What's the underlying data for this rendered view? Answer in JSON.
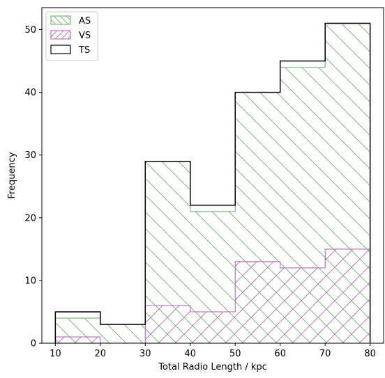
{
  "chart_data": {
    "type": "histogram",
    "xlabel": "Total Radio Length / kpc",
    "ylabel": "Frequency",
    "xlim": [
      7,
      83
    ],
    "ylim": [
      0,
      53.5
    ],
    "x_ticks": [
      10,
      20,
      30,
      40,
      50,
      60,
      70,
      80
    ],
    "y_ticks": [
      0,
      10,
      20,
      30,
      40,
      50
    ],
    "bin_edges": [
      10,
      20,
      30,
      40,
      50,
      60,
      70,
      80
    ],
    "legend_position": "top-left",
    "series": [
      {
        "name": "AS",
        "color": "#77bb77",
        "hatch": "backslash",
        "values": [
          4,
          3,
          29,
          21,
          40,
          44,
          51
        ]
      },
      {
        "name": "VS",
        "color": "#c173c1",
        "hatch": "slash",
        "values": [
          1,
          0,
          6,
          5,
          13,
          12,
          15
        ]
      },
      {
        "name": "TS",
        "color": "#000000",
        "hatch": "none",
        "values": [
          5,
          3,
          29,
          22,
          40,
          45,
          51
        ]
      }
    ]
  }
}
